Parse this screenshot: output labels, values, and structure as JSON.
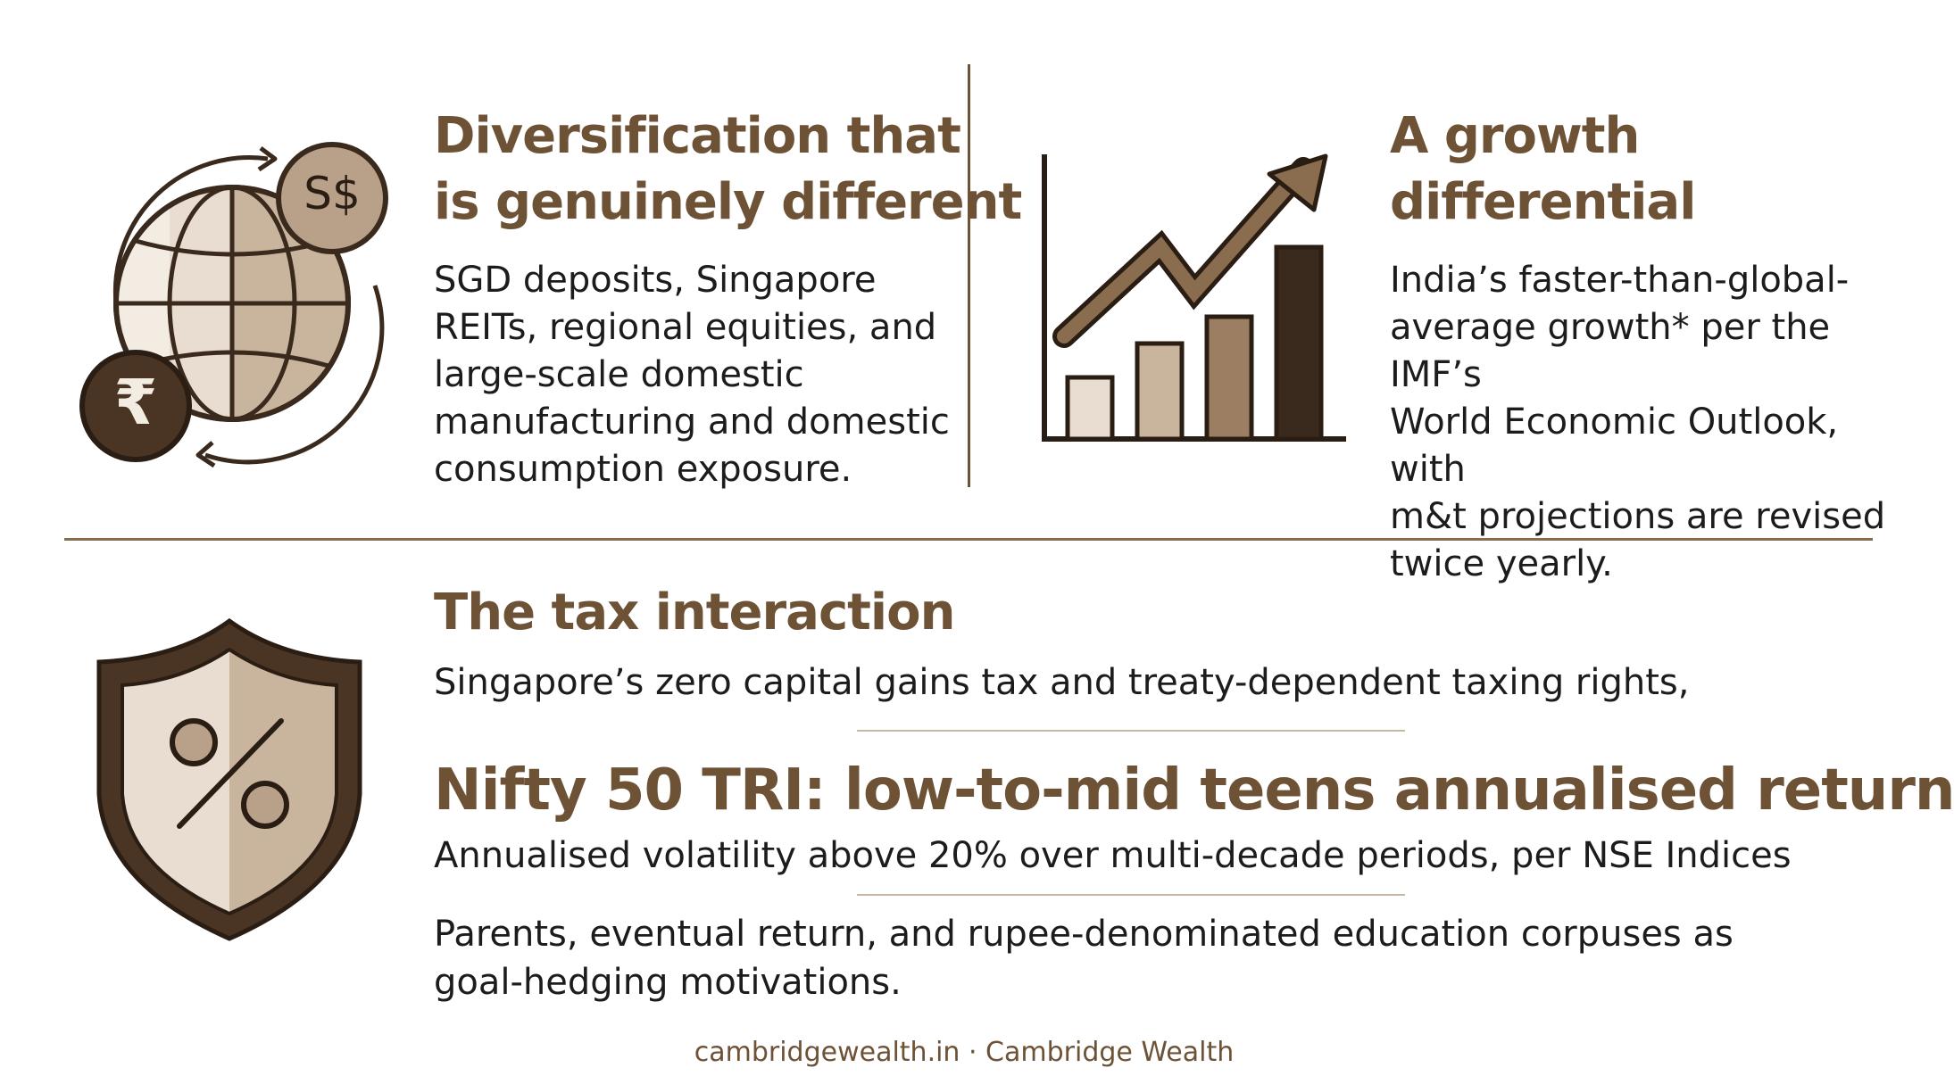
{
  "sections": {
    "diversification": {
      "icon": "globe-currency-icon",
      "currency_badge": "S$",
      "rupee_badge": "₹",
      "title_line1": "Diversification that",
      "title_line2": "is genuinely different",
      "body_lines": [
        "SGD deposits, Singapore",
        "REITs, regional equities, and",
        "large-scale domestic",
        "manufacturing and domestic",
        "consumption exposure."
      ]
    },
    "growth": {
      "icon": "growth-chart-icon",
      "title_line1": "A growth",
      "title_line2": "differential",
      "body_lines": [
        "India’s faster-than-global-",
        "average growth* per the IMF’s",
        "World Economic Outlook, with",
        "m&t projections are revised",
        "twice yearly."
      ]
    },
    "tax": {
      "icon": "shield-percent-icon",
      "title": "The tax interaction",
      "body": "Singapore’s zero capital gains tax and treaty-dependent taxing rights,",
      "highlight": "Nifty 50 TRI: low-to-mid teens annualised return",
      "volatility": "Annualised volatility above 20% over multi-decade periods, per NSE Indices",
      "goals_line1": "Parents, eventual return, and rupee-denominated education corpuses as",
      "goals_line2": "goal-hedging motivations."
    }
  },
  "footer": {
    "text": "cambridgewealth.in · Cambridge Wealth"
  },
  "colors": {
    "heading": "#6e5236",
    "dark_brown": "#4a3423",
    "mid_brown": "#8a6c4f",
    "light_tan": "#d9ccbd",
    "cream": "#ece3d8",
    "text": "#1c1c1c"
  }
}
